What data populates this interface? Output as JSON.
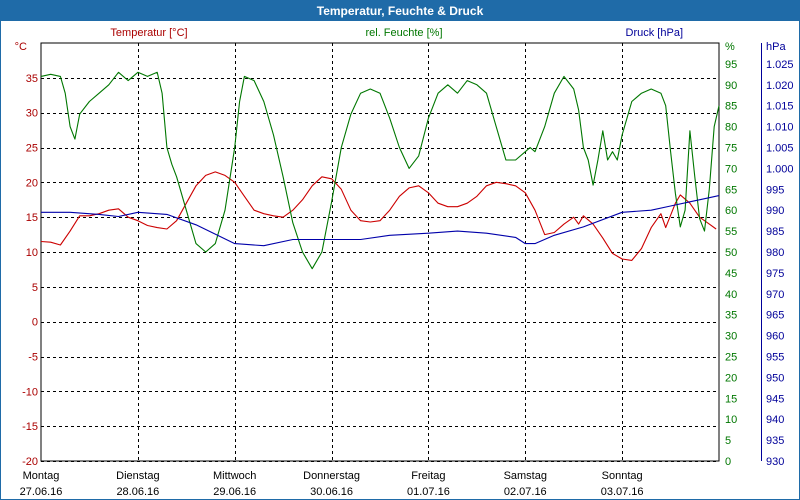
{
  "chart_data": {
    "type": "line",
    "title": "Temperatur, Feuchte & Druck",
    "grid": true,
    "axes": {
      "left": {
        "label": "Temperatur [°C]",
        "unit": "°C",
        "range": [
          -20,
          40
        ],
        "ticks": [
          -20,
          -15,
          -10,
          -5,
          0,
          5,
          10,
          15,
          20,
          25,
          30,
          35
        ],
        "color": "#aa0000"
      },
      "mid": {
        "label": "rel. Feuchte [%]",
        "unit": "%",
        "range": [
          0,
          100
        ],
        "ticks": [
          0,
          5,
          10,
          15,
          20,
          25,
          30,
          35,
          40,
          45,
          50,
          55,
          60,
          65,
          70,
          75,
          80,
          85,
          90,
          95
        ],
        "color": "#007700"
      },
      "right": {
        "label": "Druck [hPa]",
        "unit": "hPa",
        "range": [
          930,
          1030
        ],
        "ticks": [
          "930",
          "935",
          "940",
          "945",
          "950",
          "955",
          "960",
          "965",
          "970",
          "975",
          "980",
          "985",
          "990",
          "995",
          "1.000",
          "1.005",
          "1.010",
          "1.015",
          "1.020",
          "1.025"
        ],
        "color": "#000099"
      }
    },
    "x_range": [
      0,
      7
    ],
    "days": [
      {
        "weekday": "Montag",
        "date": "27.06.16"
      },
      {
        "weekday": "Dienstag",
        "date": "28.06.16"
      },
      {
        "weekday": "Mittwoch",
        "date": "29.06.16"
      },
      {
        "weekday": "Donnerstag",
        "date": "30.06.16"
      },
      {
        "weekday": "Freitag",
        "date": "01.07.16"
      },
      {
        "weekday": "Samstag",
        "date": "02.07.16"
      },
      {
        "weekday": "Sonntag",
        "date": "03.07.16"
      }
    ],
    "series": [
      {
        "name": "Temperatur",
        "axis": "left",
        "color": "#cc0000",
        "points": [
          [
            0,
            11.5
          ],
          [
            0.1,
            11.4
          ],
          [
            0.2,
            11
          ],
          [
            0.3,
            13
          ],
          [
            0.4,
            15.2
          ],
          [
            0.5,
            15.2
          ],
          [
            0.6,
            15.5
          ],
          [
            0.7,
            16
          ],
          [
            0.8,
            16.2
          ],
          [
            0.9,
            15
          ],
          [
            1,
            14.5
          ],
          [
            1.1,
            13.8
          ],
          [
            1.2,
            13.5
          ],
          [
            1.3,
            13.3
          ],
          [
            1.4,
            14.5
          ],
          [
            1.5,
            17
          ],
          [
            1.6,
            19.5
          ],
          [
            1.7,
            21
          ],
          [
            1.8,
            21.5
          ],
          [
            1.9,
            21
          ],
          [
            2,
            20
          ],
          [
            2.1,
            18
          ],
          [
            2.2,
            16
          ],
          [
            2.3,
            15.5
          ],
          [
            2.4,
            15.2
          ],
          [
            2.5,
            15
          ],
          [
            2.6,
            16
          ],
          [
            2.7,
            17.5
          ],
          [
            2.8,
            19.5
          ],
          [
            2.9,
            20.8
          ],
          [
            3,
            20.5
          ],
          [
            3.1,
            19
          ],
          [
            3.2,
            16
          ],
          [
            3.3,
            14.5
          ],
          [
            3.4,
            14.3
          ],
          [
            3.5,
            14.5
          ],
          [
            3.6,
            16
          ],
          [
            3.7,
            18
          ],
          [
            3.8,
            19.2
          ],
          [
            3.9,
            19.5
          ],
          [
            4,
            18.5
          ],
          [
            4.1,
            17
          ],
          [
            4.2,
            16.5
          ],
          [
            4.3,
            16.5
          ],
          [
            4.4,
            17
          ],
          [
            4.5,
            18
          ],
          [
            4.6,
            19.5
          ],
          [
            4.7,
            20
          ],
          [
            4.8,
            19.8
          ],
          [
            4.9,
            19.5
          ],
          [
            5,
            18.5
          ],
          [
            5.1,
            16
          ],
          [
            5.2,
            12.5
          ],
          [
            5.3,
            12.8
          ],
          [
            5.4,
            14
          ],
          [
            5.5,
            15
          ],
          [
            5.55,
            14
          ],
          [
            5.6,
            15.2
          ],
          [
            5.7,
            14
          ],
          [
            5.8,
            12
          ],
          [
            5.9,
            9.8
          ],
          [
            6,
            9
          ],
          [
            6.1,
            8.8
          ],
          [
            6.2,
            10.5
          ],
          [
            6.3,
            13.5
          ],
          [
            6.4,
            15.5
          ],
          [
            6.45,
            13.5
          ],
          [
            6.55,
            17
          ],
          [
            6.6,
            18.2
          ],
          [
            6.7,
            17
          ],
          [
            6.8,
            15
          ],
          [
            6.9,
            14
          ],
          [
            6.97,
            13.3
          ]
        ]
      },
      {
        "name": "rel. Feuchte",
        "axis": "mid",
        "color": "#007700",
        "points": [
          [
            0,
            92
          ],
          [
            0.1,
            92.5
          ],
          [
            0.2,
            92
          ],
          [
            0.25,
            88
          ],
          [
            0.3,
            80
          ],
          [
            0.35,
            77
          ],
          [
            0.4,
            83
          ],
          [
            0.5,
            86
          ],
          [
            0.6,
            88
          ],
          [
            0.7,
            90
          ],
          [
            0.8,
            93
          ],
          [
            0.9,
            91
          ],
          [
            1,
            93
          ],
          [
            1.1,
            92
          ],
          [
            1.2,
            93
          ],
          [
            1.25,
            88
          ],
          [
            1.3,
            75
          ],
          [
            1.35,
            71
          ],
          [
            1.4,
            68
          ],
          [
            1.5,
            60
          ],
          [
            1.6,
            52
          ],
          [
            1.7,
            50
          ],
          [
            1.8,
            52
          ],
          [
            1.9,
            60
          ],
          [
            2,
            75
          ],
          [
            2.05,
            86
          ],
          [
            2.1,
            92
          ],
          [
            2.2,
            91
          ],
          [
            2.3,
            86
          ],
          [
            2.4,
            78
          ],
          [
            2.5,
            68
          ],
          [
            2.6,
            57
          ],
          [
            2.7,
            50
          ],
          [
            2.8,
            46
          ],
          [
            2.9,
            50
          ],
          [
            3,
            62
          ],
          [
            3.1,
            75
          ],
          [
            3.2,
            83
          ],
          [
            3.3,
            88
          ],
          [
            3.4,
            89
          ],
          [
            3.5,
            88
          ],
          [
            3.6,
            82
          ],
          [
            3.7,
            75
          ],
          [
            3.8,
            70
          ],
          [
            3.9,
            73
          ],
          [
            4,
            82
          ],
          [
            4.1,
            88
          ],
          [
            4.2,
            90
          ],
          [
            4.3,
            88
          ],
          [
            4.4,
            91
          ],
          [
            4.5,
            90
          ],
          [
            4.6,
            88
          ],
          [
            4.7,
            80
          ],
          [
            4.8,
            72
          ],
          [
            4.9,
            72
          ],
          [
            5,
            74
          ],
          [
            5.05,
            75
          ],
          [
            5.1,
            74
          ],
          [
            5.2,
            80
          ],
          [
            5.3,
            88
          ],
          [
            5.4,
            92
          ],
          [
            5.5,
            89
          ],
          [
            5.55,
            84
          ],
          [
            5.6,
            75
          ],
          [
            5.65,
            72
          ],
          [
            5.7,
            66
          ],
          [
            5.75,
            72
          ],
          [
            5.8,
            79
          ],
          [
            5.85,
            72
          ],
          [
            5.9,
            74
          ],
          [
            5.95,
            72
          ],
          [
            6,
            78
          ],
          [
            6.1,
            86
          ],
          [
            6.2,
            88
          ],
          [
            6.3,
            89
          ],
          [
            6.4,
            88
          ],
          [
            6.45,
            85
          ],
          [
            6.5,
            74
          ],
          [
            6.55,
            64
          ],
          [
            6.6,
            56
          ],
          [
            6.65,
            60
          ],
          [
            6.7,
            79
          ],
          [
            6.75,
            68
          ],
          [
            6.8,
            58
          ],
          [
            6.85,
            55
          ],
          [
            6.9,
            65
          ],
          [
            6.95,
            80
          ],
          [
            7,
            85
          ]
        ]
      },
      {
        "name": "Druck",
        "axis": "right",
        "color": "#0000aa",
        "points": [
          [
            0,
            989.5
          ],
          [
            0.3,
            989.5
          ],
          [
            0.6,
            989
          ],
          [
            0.8,
            988.5
          ],
          [
            1,
            989.5
          ],
          [
            1.3,
            989
          ],
          [
            1.6,
            986.5
          ],
          [
            2,
            982
          ],
          [
            2.3,
            981.5
          ],
          [
            2.6,
            983
          ],
          [
            3,
            983
          ],
          [
            3.3,
            983
          ],
          [
            3.6,
            984
          ],
          [
            4,
            984.5
          ],
          [
            4.3,
            985
          ],
          [
            4.6,
            984.5
          ],
          [
            4.9,
            983.5
          ],
          [
            5,
            982
          ],
          [
            5.1,
            982
          ],
          [
            5.3,
            984
          ],
          [
            5.6,
            986
          ],
          [
            6,
            989.5
          ],
          [
            6.3,
            990
          ],
          [
            6.5,
            991
          ],
          [
            6.7,
            992
          ],
          [
            6.9,
            993
          ],
          [
            7,
            993.5
          ]
        ]
      }
    ]
  }
}
